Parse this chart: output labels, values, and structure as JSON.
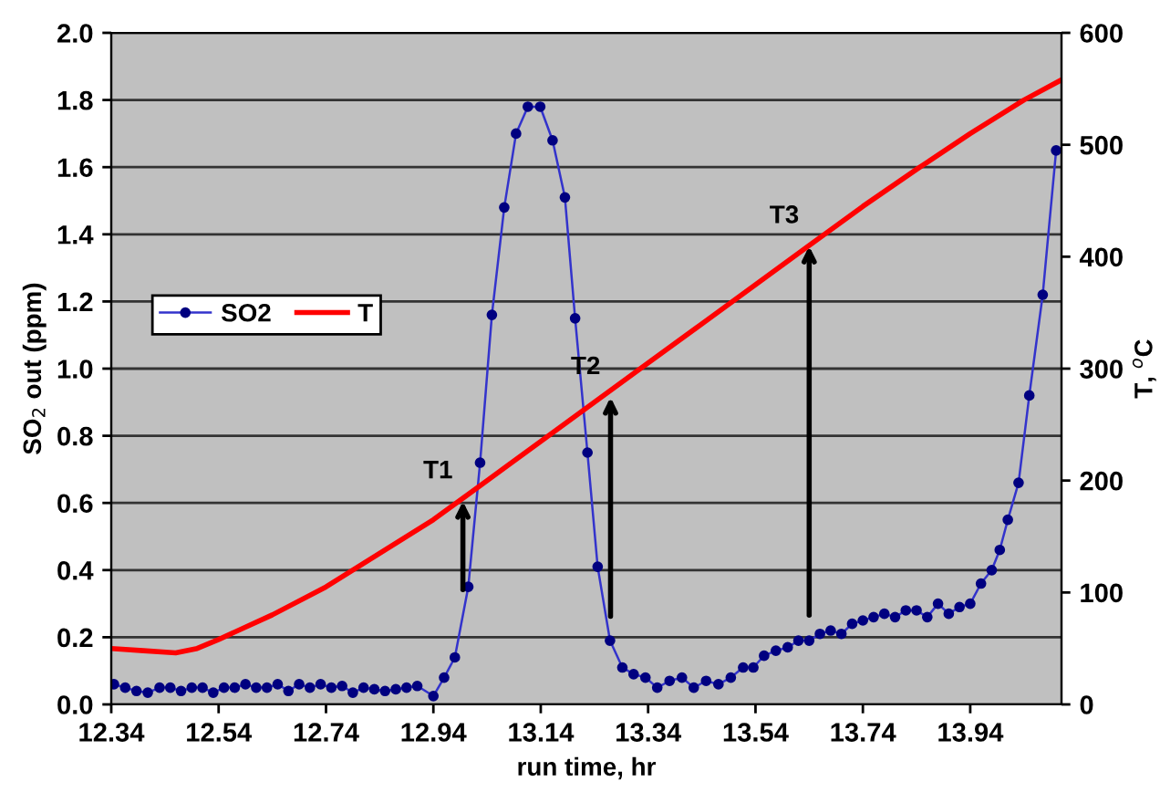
{
  "chart_data": {
    "type": "line",
    "xlabel": "run time, hr",
    "ylabel": "SO$_{2}$ out (ppm)",
    "y2label": "T, $^{o}$C",
    "xlim": [
      12.34,
      14.11
    ],
    "xticks": [
      {
        "value": 12.34,
        "label": "12.34"
      },
      {
        "value": 12.54,
        "label": "12.54"
      },
      {
        "value": 12.74,
        "label": "12.74"
      },
      {
        "value": 12.94,
        "label": "12.94"
      },
      {
        "value": 13.14,
        "label": "13.14"
      },
      {
        "value": 13.34,
        "label": "13.34"
      },
      {
        "value": 13.54,
        "label": "13.54"
      },
      {
        "value": 13.74,
        "label": "13.74"
      },
      {
        "value": 13.94,
        "label": "13.94"
      }
    ],
    "ylim": [
      0,
      2.0
    ],
    "yticks": [
      {
        "value": 0,
        "label": "0.0"
      },
      {
        "value": 0.2,
        "label": "0.2"
      },
      {
        "value": 0.4,
        "label": "0.4"
      },
      {
        "value": 0.6,
        "label": "0.6"
      },
      {
        "value": 0.8,
        "label": "0.8"
      },
      {
        "value": 1.0,
        "label": "1.0"
      },
      {
        "value": 1.2,
        "label": "1.2"
      },
      {
        "value": 1.4,
        "label": "1.4"
      },
      {
        "value": 1.6,
        "label": "1.6"
      },
      {
        "value": 1.8,
        "label": "1.8"
      },
      {
        "value": 2.0,
        "label": "2.0"
      }
    ],
    "y2lim": [
      0,
      600
    ],
    "y2ticks": [
      0,
      100,
      200,
      300,
      400,
      500,
      600
    ],
    "grid": "y",
    "legend": "left",
    "series": [
      {
        "name": "SO2",
        "color": "#000080",
        "marker": "circle",
        "axis": "y",
        "x": [
          12.345,
          12.366,
          12.387,
          12.408,
          12.43,
          12.45,
          12.47,
          12.49,
          12.51,
          12.53,
          12.55,
          12.57,
          12.59,
          12.61,
          12.63,
          12.65,
          12.67,
          12.69,
          12.71,
          12.73,
          12.75,
          12.77,
          12.79,
          12.81,
          12.83,
          12.85,
          12.87,
          12.89,
          12.91,
          12.94,
          12.96,
          12.98,
          13.005,
          13.027,
          13.049,
          13.072,
          13.094,
          13.116,
          13.139,
          13.162,
          13.185,
          13.204,
          13.227,
          13.246,
          13.269,
          13.292,
          13.313,
          13.335,
          13.357,
          13.38,
          13.403,
          13.425,
          13.448,
          13.471,
          13.494,
          13.517,
          13.536,
          13.556,
          13.578,
          13.6,
          13.62,
          13.64,
          13.66,
          13.68,
          13.7,
          13.72,
          13.74,
          13.76,
          13.78,
          13.8,
          13.82,
          13.84,
          13.86,
          13.88,
          13.9,
          13.92,
          13.94,
          13.96,
          13.98,
          13.995,
          14.01,
          14.03,
          14.05,
          14.075,
          14.1
        ],
        "values": [
          0.06,
          0.05,
          0.04,
          0.035,
          0.05,
          0.05,
          0.04,
          0.05,
          0.05,
          0.035,
          0.05,
          0.05,
          0.06,
          0.05,
          0.05,
          0.06,
          0.04,
          0.06,
          0.05,
          0.06,
          0.05,
          0.055,
          0.035,
          0.05,
          0.045,
          0.04,
          0.045,
          0.05,
          0.055,
          0.025,
          0.08,
          0.14,
          0.35,
          0.72,
          1.16,
          1.48,
          1.7,
          1.78,
          1.78,
          1.68,
          1.51,
          1.15,
          0.75,
          0.41,
          0.19,
          0.11,
          0.09,
          0.08,
          0.05,
          0.07,
          0.08,
          0.05,
          0.07,
          0.06,
          0.08,
          0.11,
          0.11,
          0.145,
          0.16,
          0.17,
          0.19,
          0.19,
          0.21,
          0.22,
          0.21,
          0.24,
          0.25,
          0.26,
          0.27,
          0.26,
          0.28,
          0.28,
          0.26,
          0.3,
          0.27,
          0.29,
          0.3,
          0.36,
          0.4,
          0.46,
          0.55,
          0.66,
          0.92,
          1.22,
          1.65
        ]
      },
      {
        "name": "T",
        "color": "#ff0000",
        "marker": "none",
        "axis": "y2",
        "x": [
          12.34,
          12.4,
          12.46,
          12.5,
          12.54,
          12.64,
          12.74,
          12.84,
          12.94,
          13.04,
          13.14,
          13.24,
          13.34,
          13.44,
          13.54,
          13.64,
          13.74,
          13.84,
          13.94,
          14.04,
          14.11
        ],
        "values": [
          50,
          48,
          46,
          50,
          58,
          80,
          105,
          135,
          165,
          200,
          235,
          270,
          305,
          340,
          375,
          410,
          445,
          478,
          510,
          540,
          558
        ]
      }
    ],
    "annotations": [
      {
        "text": "T1",
        "x": 12.995,
        "y": 0.62
      },
      {
        "text": "T2",
        "x": 13.27,
        "y": 0.93
      },
      {
        "text": "T3",
        "x": 13.64,
        "y": 1.38
      }
    ]
  }
}
